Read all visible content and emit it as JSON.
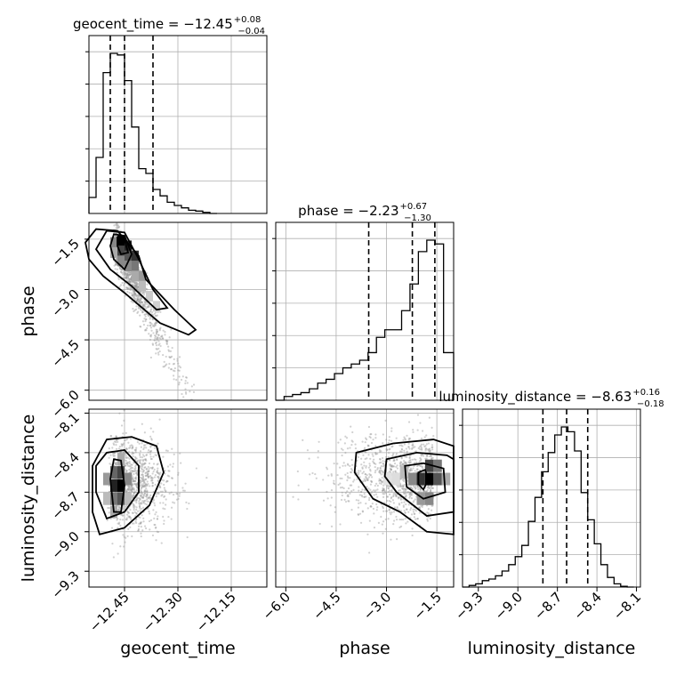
{
  "chart_data": {
    "type": "corner",
    "parameters": [
      {
        "name": "geocent_time",
        "title_text": "geocent_time = −12.45",
        "title_plus": "+0.08",
        "title_minus": "−0.04",
        "median": -12.45,
        "err_plus": 0.08,
        "err_minus": 0.04,
        "range": [
          -12.55,
          -12.05
        ],
        "ticks": [
          -12.45,
          -12.3,
          -12.15
        ],
        "tick_labels": [
          "−12.45",
          "−12.30",
          "−12.15"
        ],
        "quantiles": [
          -12.49,
          -12.45,
          -12.37
        ],
        "hist": {
          "edges": [
            -12.55,
            -12.53,
            -12.51,
            -12.49,
            -12.47,
            -12.45,
            -12.43,
            -12.41,
            -12.39,
            -12.37,
            -12.35,
            -12.33,
            -12.31,
            -12.29,
            -12.27,
            -12.25,
            -12.23,
            -12.21,
            -12.19
          ],
          "counts": [
            10,
            35,
            88,
            100,
            99,
            83,
            54,
            28,
            25,
            15,
            11,
            7,
            5,
            3.5,
            2,
            1.5,
            0.7,
            0
          ]
        }
      },
      {
        "name": "phase",
        "title_text": "phase = −2.23",
        "title_plus": "+0.67",
        "title_minus": "−1.30",
        "median": -2.23,
        "err_plus": 0.67,
        "err_minus": 1.3,
        "range": [
          -6.3,
          -1.0
        ],
        "ticks": [
          -6.0,
          -4.5,
          -3.0,
          -1.5
        ],
        "tick_labels": [
          "−6.0",
          "−4.5",
          "−3.0",
          "−1.5"
        ],
        "quantiles": [
          -3.53,
          -2.23,
          -1.56
        ],
        "hist": {
          "edges": [
            -6.3,
            -6.05,
            -5.8,
            -5.55,
            -5.3,
            -5.05,
            -4.8,
            -4.55,
            -4.3,
            -4.05,
            -3.8,
            -3.55,
            -3.3,
            -3.05,
            -2.8,
            -2.55,
            -2.3,
            -2.05,
            -1.8,
            -1.55,
            -1.3,
            -1.0
          ],
          "counts": [
            0,
            2,
            3,
            4,
            6,
            9,
            11,
            14,
            17,
            19,
            21,
            25,
            33,
            37,
            37,
            47,
            61,
            78,
            84,
            82,
            25
          ]
        }
      },
      {
        "name": "luminosity_distance",
        "title_text": "luminosity_distance = −8.63",
        "title_plus": "+0.16",
        "title_minus": "−0.18",
        "median": -8.63,
        "err_plus": 0.16,
        "err_minus": 0.18,
        "range": [
          -9.42,
          -8.07
        ],
        "ticks": [
          -9.3,
          -9.0,
          -8.7,
          -8.4,
          -8.1
        ],
        "tick_labels": [
          "−9.3",
          "−9.0",
          "−8.7",
          "−8.4",
          "−8.1"
        ],
        "quantiles": [
          -8.81,
          -8.63,
          -8.47
        ],
        "hist": {
          "edges": [
            -9.42,
            -9.37,
            -9.32,
            -9.27,
            -9.22,
            -9.17,
            -9.12,
            -9.07,
            -9.02,
            -8.97,
            -8.92,
            -8.87,
            -8.82,
            -8.77,
            -8.72,
            -8.67,
            -8.62,
            -8.57,
            -8.52,
            -8.47,
            -8.42,
            -8.37,
            -8.32,
            -8.27,
            -8.22,
            -8.17,
            -8.12
          ],
          "counts": [
            0,
            1,
            2,
            4,
            5,
            7,
            10,
            14,
            19,
            26,
            41,
            56,
            72,
            84,
            95,
            100,
            97,
            85,
            59,
            42,
            27,
            14,
            6,
            2,
            0.5,
            0
          ]
        }
      }
    ],
    "axis_labels": {
      "x": [
        "geocent_time",
        "phase",
        "luminosity_distance"
      ],
      "y": [
        "phase",
        "luminosity_distance"
      ]
    },
    "correlations": {
      "phase_vs_geocent_time": "strong negative",
      "distance_vs_geocent_time": "weak",
      "distance_vs_phase": "weak"
    },
    "style": {
      "grid": true,
      "color": "#000000",
      "scatter_color": "#a0a0a0"
    }
  }
}
